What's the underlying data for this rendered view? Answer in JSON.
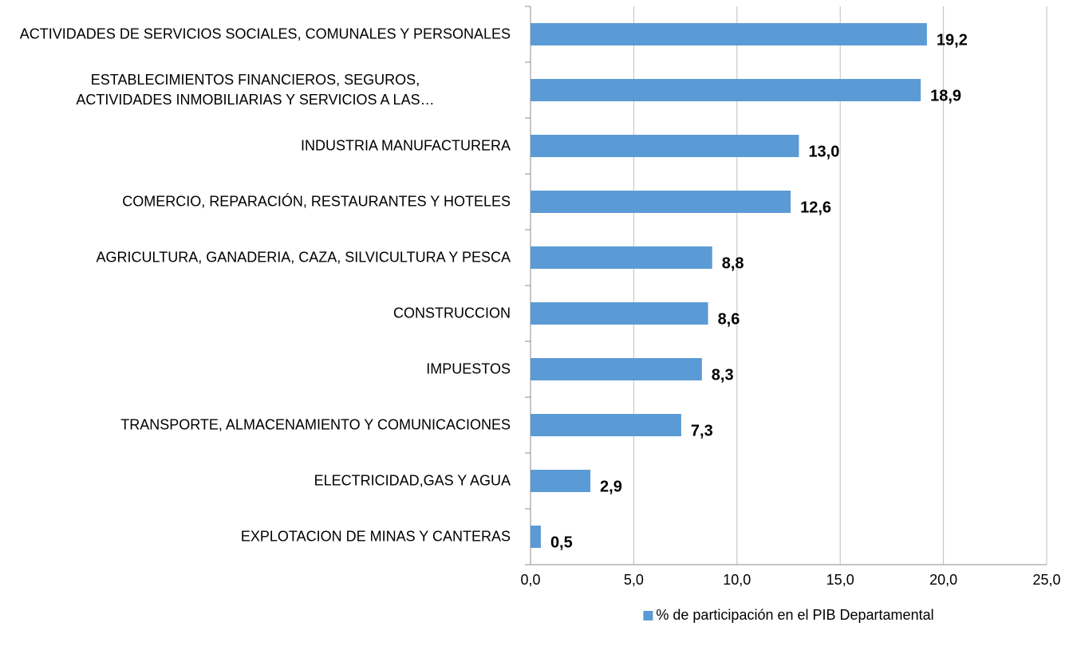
{
  "chart_data": {
    "type": "barh",
    "categories": [
      "ACTIVIDADES DE SERVICIOS SOCIALES, COMUNALES Y PERSONALES",
      "ESTABLECIMIENTOS FINANCIEROS, SEGUROS, ACTIVIDADES INMOBILIARIAS Y SERVICIOS A LAS…",
      "INDUSTRIA MANUFACTURERA",
      "COMERCIO, REPARACIÓN, RESTAURANTES Y HOTELES",
      "AGRICULTURA, GANADERIA, CAZA, SILVICULTURA Y PESCA",
      "CONSTRUCCION",
      "IMPUESTOS",
      "TRANSPORTE, ALMACENAMIENTO Y COMUNICACIONES",
      "ELECTRICIDAD,GAS Y AGUA",
      "EXPLOTACION DE MINAS Y CANTERAS"
    ],
    "series": [
      {
        "name": "% de participación en el PIB Departamental",
        "color": "#5b9bd5",
        "values": [
          19.2,
          18.9,
          13.0,
          12.6,
          8.8,
          8.6,
          8.3,
          7.3,
          2.9,
          0.5
        ],
        "value_labels": [
          "19,2",
          "18,9",
          "13,0",
          "12,6",
          "8,8",
          "8,6",
          "8,3",
          "7,3",
          "2,9",
          "0,5"
        ]
      }
    ],
    "xlim": [
      0,
      25
    ],
    "xticks": [
      {
        "value": 0,
        "label": "0,0"
      },
      {
        "value": 5,
        "label": "5,0"
      },
      {
        "value": 10,
        "label": "10,0"
      },
      {
        "value": 15,
        "label": "15,0"
      },
      {
        "value": 20,
        "label": "20,0"
      },
      {
        "value": 25,
        "label": "25,0"
      }
    ],
    "grid": true,
    "legend": "bottom"
  }
}
